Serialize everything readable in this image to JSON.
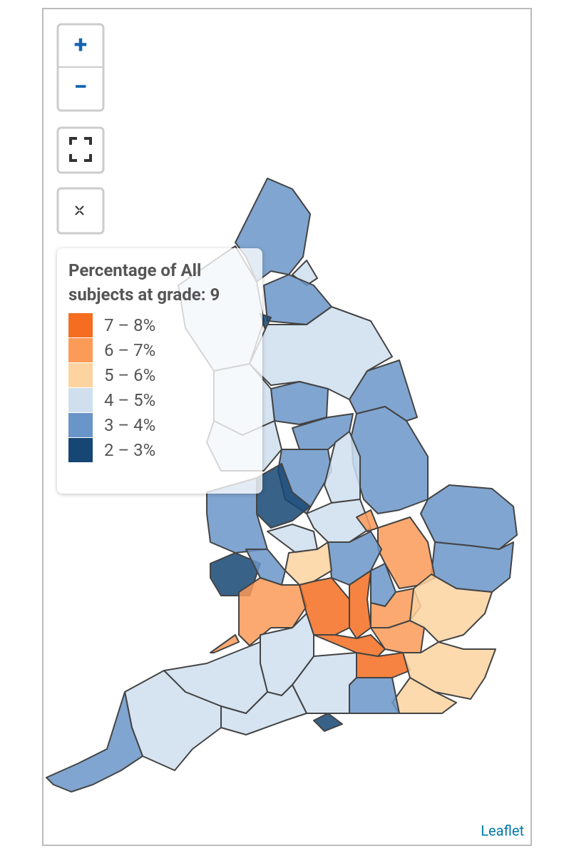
{
  "zoom": {
    "in": "+",
    "out": "−"
  },
  "legend": {
    "title": "Percentage of All subjects at grade: 9",
    "items": [
      {
        "label": "7 – 8%",
        "color": "#f46d20"
      },
      {
        "label": "6 – 7%",
        "color": "#fc9a58"
      },
      {
        "label": "5 – 6%",
        "color": "#fdd4a0"
      },
      {
        "label": "4 – 5%",
        "color": "#cfdfee"
      },
      {
        "label": "3 – 4%",
        "color": "#6a95c8"
      },
      {
        "label": "2 – 3%",
        "color": "#164673"
      }
    ]
  },
  "attribution": "Leaflet"
}
